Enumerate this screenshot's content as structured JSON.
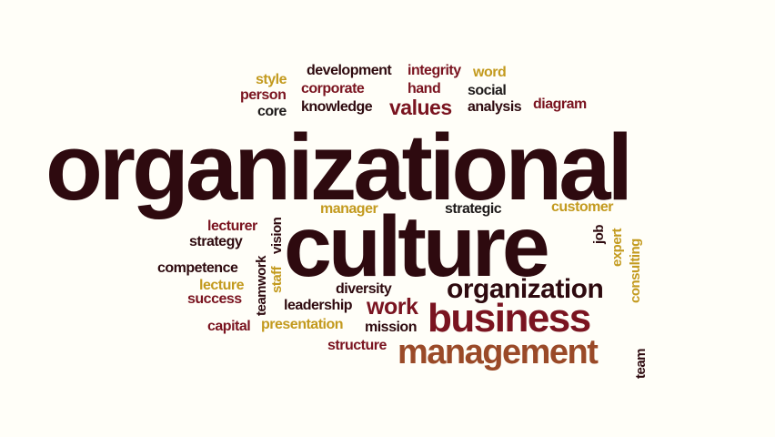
{
  "words": {
    "organizational": "organizational",
    "culture": "culture",
    "business": "business",
    "management": "management",
    "organization": "organization",
    "values": "values",
    "work": "work",
    "style": "style",
    "person": "person",
    "core": "core",
    "development": "development",
    "corporate": "corporate",
    "knowledge": "knowledge",
    "integrity": "integrity",
    "hand": "hand",
    "word": "word",
    "social": "social",
    "analysis": "analysis",
    "diagram": "diagram",
    "manager": "manager",
    "strategic": "strategic",
    "customer": "customer",
    "lecturer": "lecturer",
    "strategy": "strategy",
    "competence": "competence",
    "lecture": "lecture",
    "success": "success",
    "capital": "capital",
    "presentation": "presentation",
    "leadership": "leadership",
    "diversity": "diversity",
    "mission": "mission",
    "structure": "structure",
    "vision": "vision",
    "teamwork": "teamwork",
    "staff": "staff",
    "job": "job",
    "expert": "expert",
    "consulting": "consulting",
    "team": "team"
  },
  "colors": {
    "background": "#fffef8",
    "dark": "#2e0a0f",
    "maroon": "#7a1420",
    "gold": "#c39a1e",
    "brown": "#9a4a28",
    "black": "#1e1a1a"
  }
}
